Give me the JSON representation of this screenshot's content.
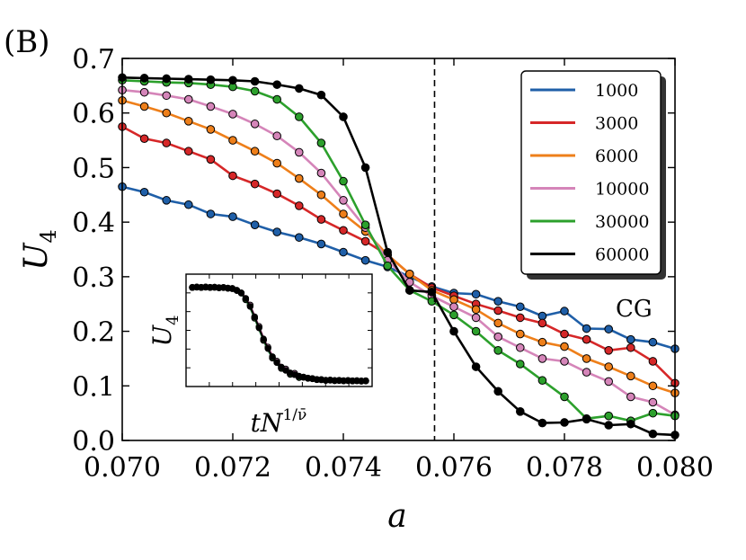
{
  "chart_data": {
    "type": "line",
    "panel_label": "(B)",
    "xlabel": "a",
    "ylabel": "U",
    "ylabel_sub": "4",
    "xlim": [
      0.07,
      0.08
    ],
    "ylim": [
      0.0,
      0.7
    ],
    "xticks": [
      "0.070",
      "0.072",
      "0.074",
      "0.076",
      "0.078",
      "0.080"
    ],
    "yticks": [
      "0.0",
      "0.1",
      "0.2",
      "0.3",
      "0.4",
      "0.5",
      "0.6",
      "0.7"
    ],
    "vline_x": 0.07565,
    "annotation": "CG",
    "legend_position": "top-right",
    "x": [
      0.07,
      0.0704,
      0.0708,
      0.0712,
      0.0716,
      0.072,
      0.0724,
      0.0728,
      0.0732,
      0.0736,
      0.074,
      0.0744,
      0.0748,
      0.0752,
      0.0756,
      0.076,
      0.0764,
      0.0768,
      0.0772,
      0.0776,
      0.078,
      0.0784,
      0.0788,
      0.0792,
      0.0796,
      0.08
    ],
    "series": [
      {
        "name": "1000",
        "color": "#1f5fa8",
        "values": [
          0.465,
          0.455,
          0.44,
          0.432,
          0.415,
          0.41,
          0.395,
          0.382,
          0.372,
          0.36,
          0.345,
          0.33,
          0.318,
          0.3,
          0.282,
          0.27,
          0.268,
          0.255,
          0.245,
          0.228,
          0.237,
          0.205,
          0.204,
          0.185,
          0.18,
          0.168
        ]
      },
      {
        "name": "3000",
        "color": "#d62728",
        "values": [
          0.575,
          0.553,
          0.545,
          0.53,
          0.515,
          0.485,
          0.47,
          0.452,
          0.43,
          0.405,
          0.385,
          0.365,
          0.34,
          0.305,
          0.28,
          0.265,
          0.25,
          0.238,
          0.225,
          0.215,
          0.195,
          0.185,
          0.165,
          0.17,
          0.145,
          0.105
        ]
      },
      {
        "name": "6000",
        "color": "#ee7f1a",
        "values": [
          0.623,
          0.612,
          0.6,
          0.585,
          0.57,
          0.55,
          0.53,
          0.508,
          0.48,
          0.45,
          0.415,
          0.383,
          0.34,
          0.305,
          0.275,
          0.258,
          0.24,
          0.215,
          0.195,
          0.18,
          0.172,
          0.15,
          0.135,
          0.118,
          0.1,
          0.087
        ]
      },
      {
        "name": "10000",
        "color": "#d585b9",
        "values": [
          0.642,
          0.638,
          0.632,
          0.625,
          0.612,
          0.598,
          0.58,
          0.558,
          0.528,
          0.49,
          0.44,
          0.39,
          0.33,
          0.29,
          0.265,
          0.245,
          0.225,
          0.19,
          0.17,
          0.15,
          0.145,
          0.125,
          0.108,
          0.08,
          0.07,
          0.047
        ]
      },
      {
        "name": "30000",
        "color": "#2ca02c",
        "values": [
          0.66,
          0.658,
          0.656,
          0.655,
          0.652,
          0.648,
          0.64,
          0.625,
          0.593,
          0.545,
          0.475,
          0.395,
          0.32,
          0.275,
          0.255,
          0.23,
          0.2,
          0.165,
          0.14,
          0.11,
          0.08,
          0.04,
          0.045,
          0.036,
          0.05,
          0.045
        ]
      },
      {
        "name": "60000",
        "color": "#000000",
        "values": [
          0.665,
          0.664,
          0.663,
          0.662,
          0.661,
          0.66,
          0.658,
          0.652,
          0.645,
          0.633,
          0.593,
          0.5,
          0.345,
          0.275,
          0.272,
          0.2,
          0.135,
          0.09,
          0.053,
          0.032,
          0.033,
          0.039,
          0.028,
          0.03,
          0.012,
          0.01
        ]
      }
    ],
    "inset": {
      "xlabel": "tN",
      "xlabel_sup": "1/ν̄",
      "ylabel": "U",
      "ylabel_sub": "4",
      "ylim": [
        0.0,
        0.7
      ],
      "x": [
        0,
        1,
        2,
        3,
        4,
        5,
        6,
        7,
        8,
        9,
        10,
        11,
        12,
        13,
        14,
        15,
        16,
        17,
        18,
        19,
        20,
        21,
        22,
        23,
        24,
        25,
        26,
        27,
        28,
        29,
        30,
        31,
        32,
        33,
        34,
        35,
        36,
        37,
        38,
        39
      ],
      "values": [
        0.66,
        0.66,
        0.66,
        0.66,
        0.66,
        0.659,
        0.658,
        0.657,
        0.655,
        0.65,
        0.64,
        0.62,
        0.585,
        0.53,
        0.46,
        0.385,
        0.31,
        0.245,
        0.19,
        0.15,
        0.12,
        0.097,
        0.08,
        0.068,
        0.058,
        0.05,
        0.045,
        0.04,
        0.036,
        0.033,
        0.031,
        0.03,
        0.029,
        0.028,
        0.028,
        0.027,
        0.027,
        0.026,
        0.026,
        0.025
      ]
    }
  }
}
